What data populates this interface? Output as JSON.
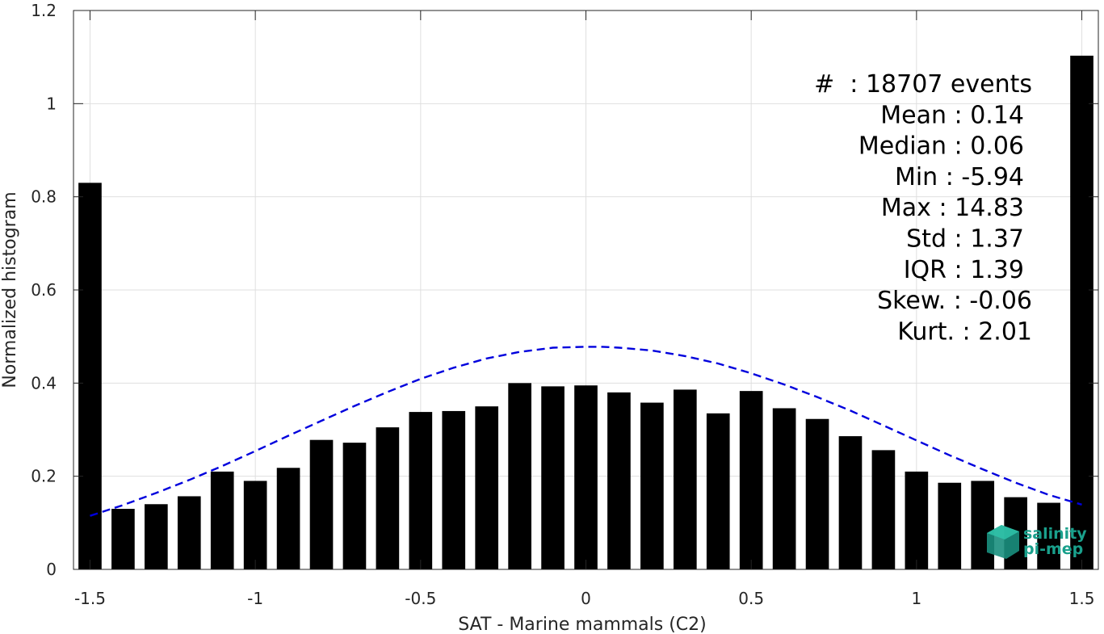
{
  "chart_data": {
    "type": "bar",
    "xlabel": "SAT - Marine mammals (C2)",
    "ylabel": "Normalized histogram",
    "xlim": [
      -1.55,
      1.55
    ],
    "ylim": [
      0,
      1.2
    ],
    "x_ticks": [
      -1.5,
      -1,
      -0.5,
      0,
      0.5,
      1,
      1.5
    ],
    "x_tick_labels": [
      "-1.5",
      "-1",
      "-0.5",
      "0",
      "0.5",
      "1",
      "1.5"
    ],
    "y_ticks": [
      0,
      0.2,
      0.4,
      0.6,
      0.8,
      1,
      1.2
    ],
    "y_tick_labels": [
      "0",
      "0.2",
      "0.4",
      "0.6",
      "0.8",
      "1",
      "1.2"
    ],
    "grid": true,
    "bar_width": 0.07,
    "bars": {
      "x": [
        -1.5,
        -1.4,
        -1.3,
        -1.2,
        -1.1,
        -1.0,
        -0.9,
        -0.8,
        -0.7,
        -0.6,
        -0.5,
        -0.4,
        -0.3,
        -0.2,
        -0.1,
        0.0,
        0.1,
        0.2,
        0.3,
        0.4,
        0.5,
        0.6,
        0.7,
        0.8,
        0.9,
        1.0,
        1.1,
        1.2,
        1.3,
        1.4,
        1.5
      ],
      "values": [
        0.83,
        0.13,
        0.14,
        0.157,
        0.21,
        0.19,
        0.218,
        0.278,
        0.272,
        0.305,
        0.338,
        0.34,
        0.35,
        0.4,
        0.393,
        0.395,
        0.38,
        0.358,
        0.386,
        0.335,
        0.383,
        0.346,
        0.323,
        0.286,
        0.256,
        0.21,
        0.186,
        0.19,
        0.155,
        0.143,
        1.103
      ],
      "color": "#000000"
    },
    "fit_curve": {
      "style": "dashed",
      "color": "#0000dd",
      "x": [
        -1.5,
        -1.4,
        -1.3,
        -1.2,
        -1.1,
        -1.0,
        -0.9,
        -0.8,
        -0.7,
        -0.6,
        -0.5,
        -0.4,
        -0.3,
        -0.2,
        -0.1,
        0.0,
        0.05,
        0.1,
        0.2,
        0.3,
        0.4,
        0.5,
        0.6,
        0.7,
        0.8,
        0.9,
        1.0,
        1.1,
        1.2,
        1.3,
        1.4,
        1.5
      ],
      "y": [
        0.115,
        0.138,
        0.164,
        0.192,
        0.222,
        0.254,
        0.287,
        0.319,
        0.351,
        0.381,
        0.409,
        0.433,
        0.453,
        0.467,
        0.476,
        0.478,
        0.478,
        0.476,
        0.47,
        0.458,
        0.442,
        0.421,
        0.397,
        0.37,
        0.341,
        0.309,
        0.277,
        0.245,
        0.215,
        0.186,
        0.16,
        0.139
      ]
    },
    "stats_lines": [
      "#  : 18707 events",
      "Mean : 0.14",
      "Median : 0.06",
      "Min : -5.94",
      "Max : 14.83",
      "Std : 1.37",
      "IQR : 1.39",
      "Skew. : -0.06",
      "Kurt. : 2.01"
    ]
  },
  "logo": {
    "line1": "salinity",
    "line2": "pi-mep",
    "color": "#1aa08c"
  }
}
